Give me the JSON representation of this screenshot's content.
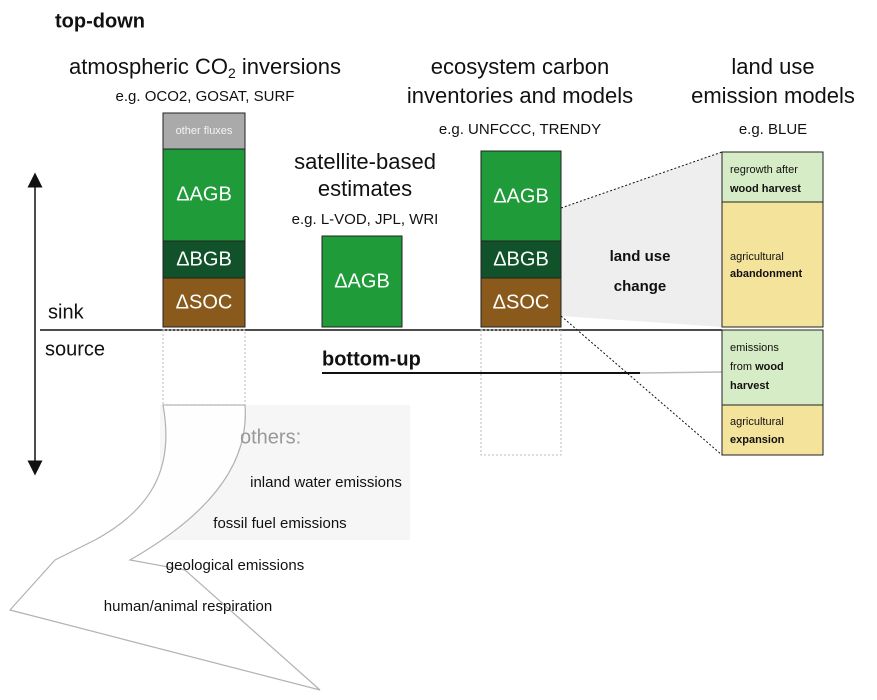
{
  "top_down": "top-down",
  "bottom_up": "bottom-up",
  "axis": {
    "sink": "sink",
    "source": "source"
  },
  "columns": [
    {
      "title": {
        "pre": "atmospheric CO",
        "sub": "2",
        "post": " inversions"
      },
      "examples": "e.g. OCO2, GOSAT, SURF",
      "blocks": [
        "other fluxes",
        "ΔAGB",
        "ΔBGB",
        "ΔSOC"
      ]
    },
    {
      "title": [
        "satellite-based",
        "estimates"
      ],
      "examples": "e.g. L-VOD, JPL, WRI",
      "blocks": [
        "ΔAGB"
      ]
    },
    {
      "title": [
        "ecosystem carbon",
        "inventories and models"
      ],
      "examples": "e.g. UNFCCC, TRENDY",
      "blocks": [
        "ΔAGB",
        "ΔBGB",
        "ΔSOC"
      ]
    },
    {
      "title": [
        "land use",
        "emission models"
      ],
      "examples": "e.g. BLUE",
      "blocks": [
        {
          "line1": "regrowth after",
          "line2": "wood harvest"
        },
        {
          "line1": "agricultural",
          "line2": "abandonment"
        },
        {
          "line1": "emissions",
          "line2a": "from ",
          "line2b": "wood",
          "line3": "harvest"
        },
        {
          "line1": "agricultural",
          "line2": "expansion"
        }
      ]
    }
  ],
  "land_use_change": [
    "land use",
    "change"
  ],
  "others": {
    "title": "others:",
    "items": [
      "inland water emissions",
      "fossil fuel emissions",
      "geological emissions",
      "human/animal respiration"
    ]
  }
}
